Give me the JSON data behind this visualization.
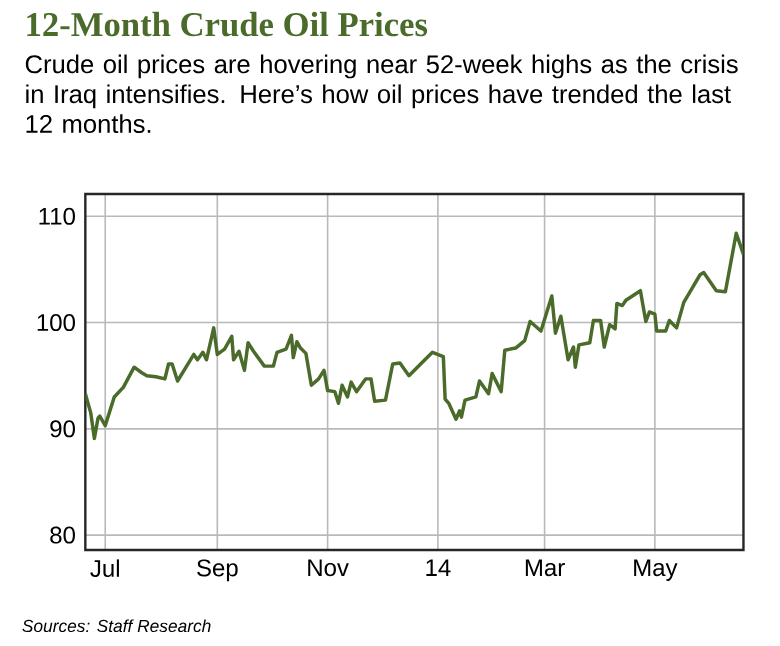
{
  "chart_data": {
    "type": "line",
    "title": "12-Month Crude Oil Prices",
    "subtitle": "Crude oil prices are hovering near 52-week highs as the crisis in Iraq intensifies. Here’s how oil prices have trended the last 12 months.",
    "x": [
      "2013-06-20",
      "2013-06-23",
      "2013-06-25",
      "2013-06-27",
      "2013-06-28",
      "2013-07-01",
      "2013-07-06",
      "2013-07-11",
      "2013-07-17",
      "2013-07-21",
      "2013-07-24",
      "2013-07-29",
      "2013-08-03",
      "2013-08-05",
      "2013-08-07",
      "2013-08-10",
      "2013-08-19",
      "2013-08-21",
      "2013-08-24",
      "2013-08-26",
      "2013-08-30",
      "2013-09-01",
      "2013-09-05",
      "2013-09-09",
      "2013-09-10",
      "2013-09-13",
      "2013-09-16",
      "2013-09-18",
      "2013-09-21",
      "2013-09-27",
      "2013-10-02",
      "2013-10-04",
      "2013-10-09",
      "2013-10-12",
      "2013-10-13",
      "2013-10-15",
      "2013-10-17",
      "2013-10-20",
      "2013-10-23",
      "2013-10-27",
      "2013-10-30",
      "2013-11-01",
      "2013-11-05",
      "2013-11-07",
      "2013-11-09",
      "2013-11-12",
      "2013-11-14",
      "2013-11-17",
      "2013-11-22",
      "2013-11-25",
      "2013-11-27",
      "2013-12-03",
      "2013-12-07",
      "2013-12-11",
      "2013-12-16",
      "2013-12-23",
      "2013-12-29",
      "2014-01-04",
      "2014-01-05",
      "2014-01-07",
      "2014-01-11",
      "2014-01-13",
      "2014-01-14",
      "2014-01-16",
      "2014-01-22",
      "2014-01-24",
      "2014-01-29",
      "2014-01-31",
      "2014-02-05",
      "2014-02-07",
      "2014-02-13",
      "2014-02-18",
      "2014-02-21",
      "2014-02-27",
      "2014-03-05",
      "2014-03-07",
      "2014-03-10",
      "2014-03-14",
      "2014-03-17",
      "2014-03-18",
      "2014-03-20",
      "2014-03-26",
      "2014-03-28",
      "2014-04-01",
      "2014-04-03",
      "2014-04-06",
      "2014-04-09",
      "2014-04-10",
      "2014-04-13",
      "2014-04-15",
      "2014-04-23",
      "2014-04-26",
      "2014-04-28",
      "2014-05-01",
      "2014-05-02",
      "2014-05-07",
      "2014-05-09",
      "2014-05-13",
      "2014-05-17",
      "2014-05-26",
      "2014-05-28",
      "2014-06-04",
      "2014-06-09",
      "2014-06-15",
      "2014-06-17",
      "2014-06-19"
    ],
    "series": [
      {
        "color": "#4a6b2a",
        "values": [
          93.3,
          91.5,
          89.1,
          91.0,
          91.2,
          90.3,
          93.0,
          93.9,
          95.8,
          95.3,
          95.0,
          94.9,
          94.7,
          96.1,
          96.1,
          94.5,
          97.0,
          96.5,
          97.2,
          96.5,
          99.5,
          97.0,
          97.5,
          98.7,
          96.5,
          97.3,
          95.5,
          98.1,
          97.3,
          95.9,
          95.9,
          97.2,
          97.5,
          98.8,
          96.7,
          98.2,
          97.6,
          97.1,
          94.1,
          94.7,
          95.5,
          93.6,
          93.5,
          92.4,
          94.1,
          93.0,
          94.4,
          93.5,
          94.7,
          94.7,
          92.6,
          92.7,
          96.1,
          96.2,
          95.0,
          96.2,
          97.2,
          96.8,
          92.8,
          92.4,
          90.9,
          91.7,
          91.1,
          92.7,
          93.0,
          94.5,
          93.3,
          95.2,
          93.5,
          97.4,
          97.6,
          98.3,
          100.1,
          99.2,
          102.5,
          99.0,
          100.6,
          96.5,
          97.7,
          95.8,
          97.9,
          98.1,
          100.2,
          100.2,
          97.7,
          99.8,
          99.4,
          101.8,
          101.6,
          102.1,
          103.0,
          100.1,
          101.0,
          100.8,
          99.2,
          99.2,
          100.2,
          99.5,
          101.9,
          104.5,
          104.7,
          103.0,
          102.9,
          108.4,
          107.4,
          106.4
        ]
      }
    ],
    "xlim": [
      "2013-06-20",
      "2014-06-19"
    ],
    "ylim": [
      78.6,
      112.1
    ],
    "xticks": [
      {
        "value": "2013-07-01",
        "label": "Jul"
      },
      {
        "value": "2013-09-01",
        "label": "Sep"
      },
      {
        "value": "2013-11-01",
        "label": "Nov"
      },
      {
        "value": "2014-01-01",
        "label": "14"
      },
      {
        "value": "2014-03-01",
        "label": "Mar"
      },
      {
        "value": "2014-05-01",
        "label": "May"
      }
    ],
    "yticks": [
      80,
      90,
      100,
      110
    ],
    "grid": true,
    "annotations": [
      "Sources: Staff Research"
    ]
  }
}
